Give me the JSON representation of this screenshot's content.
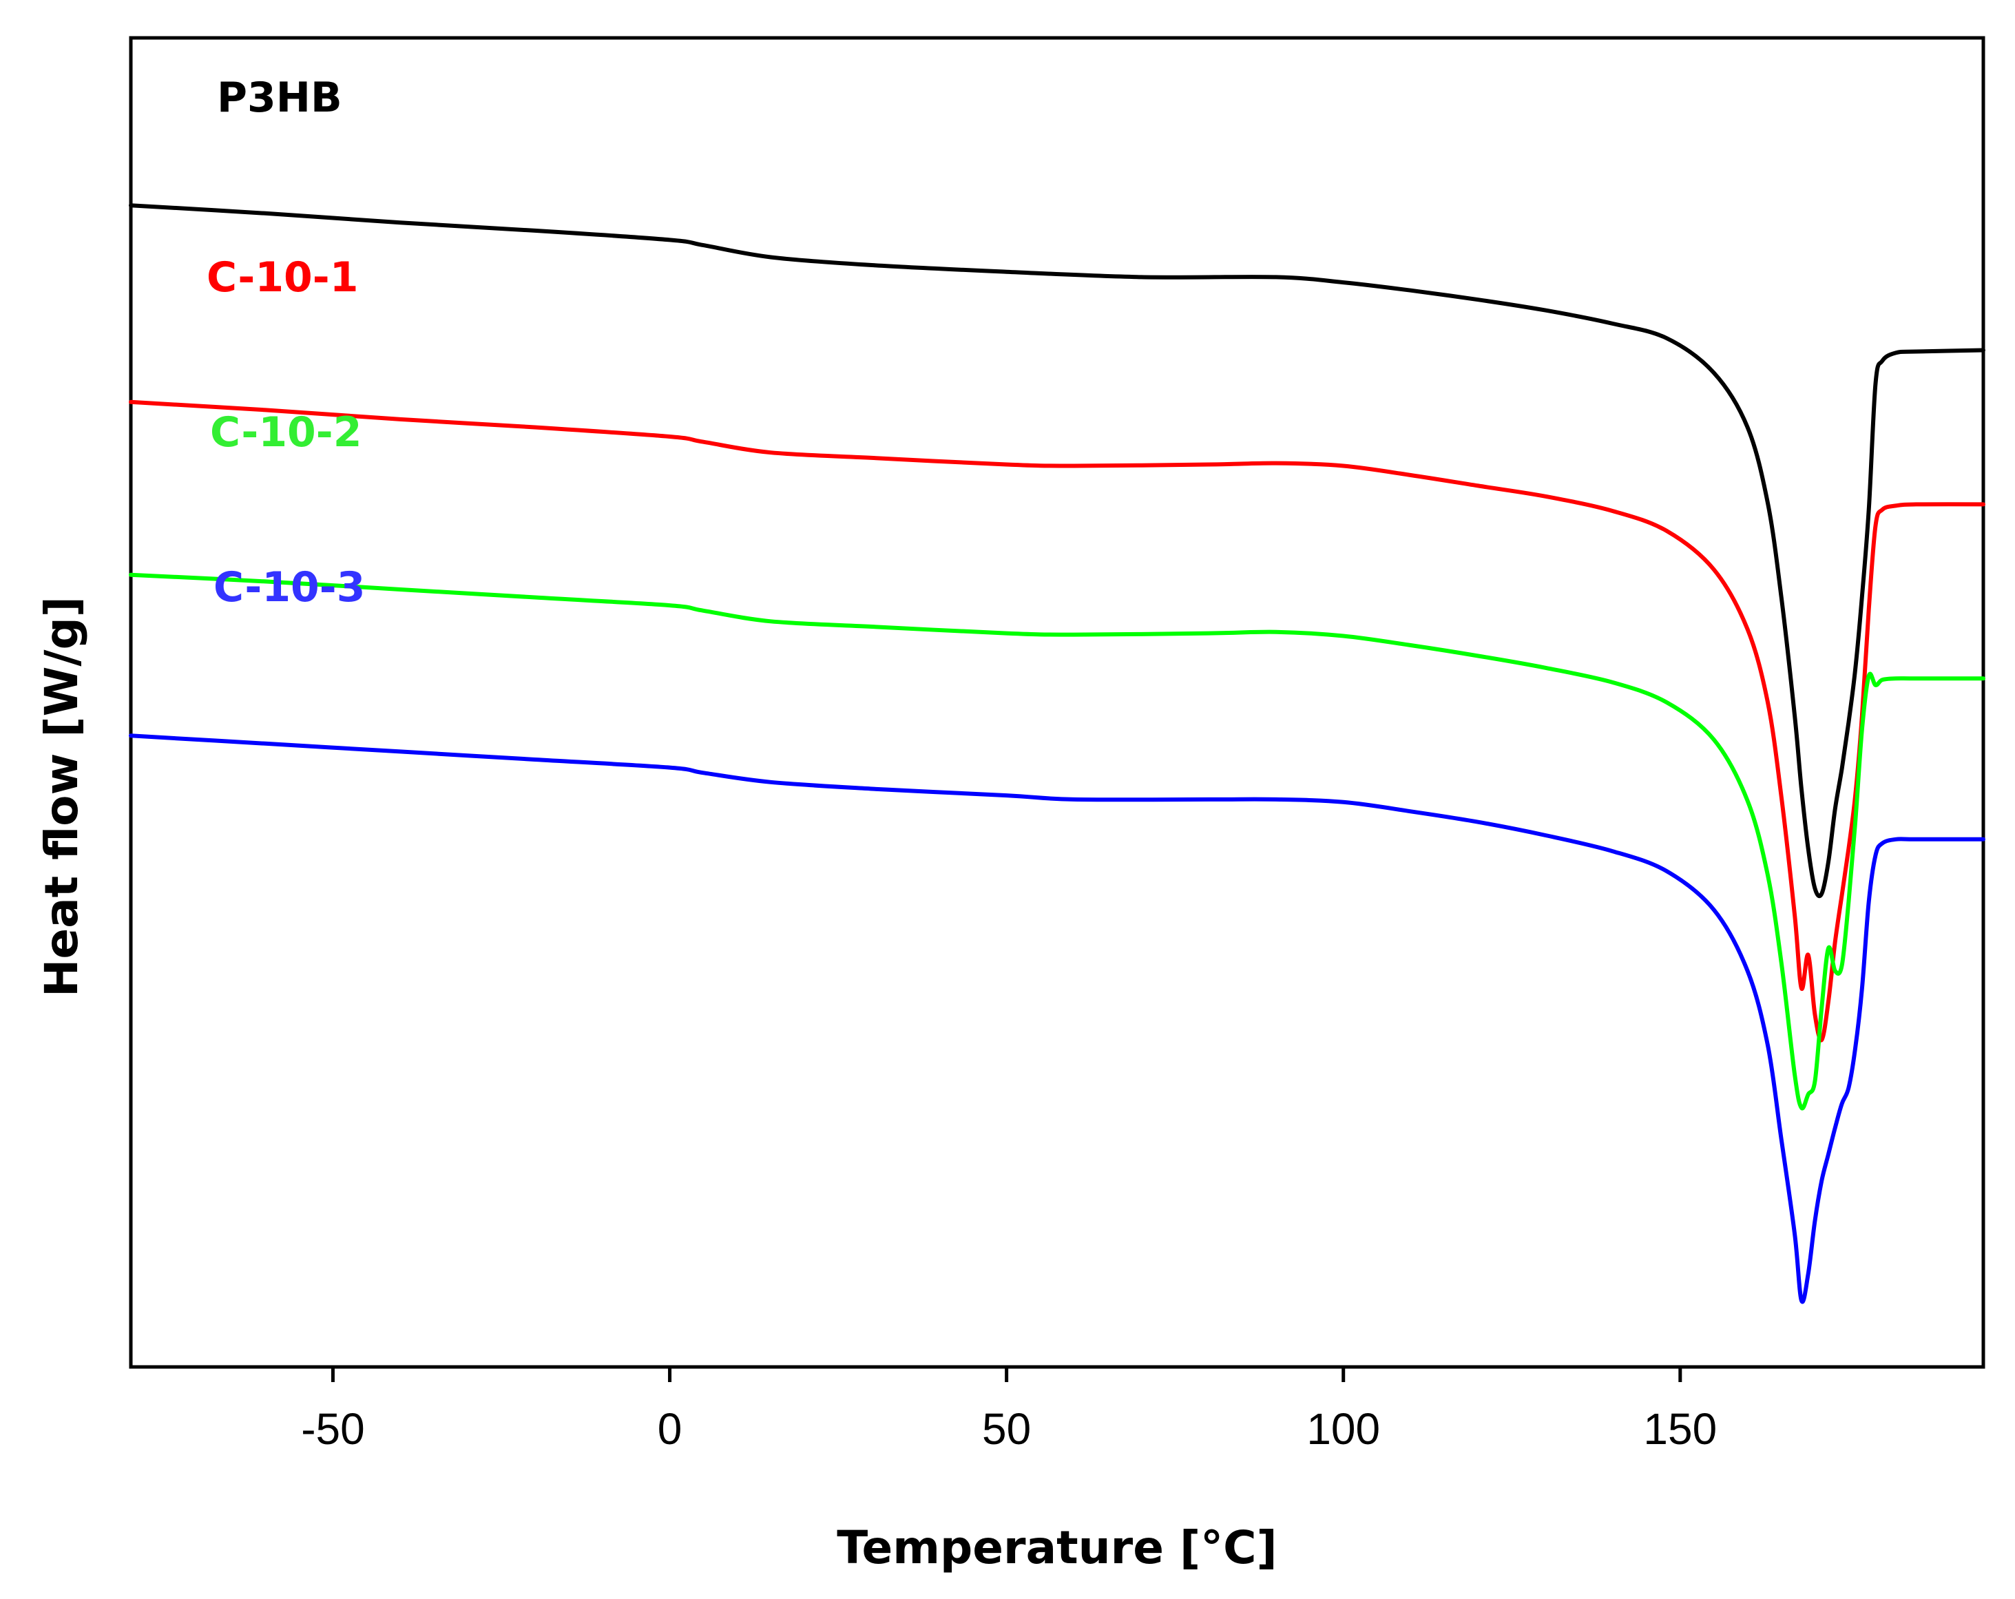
{
  "chart_data": {
    "type": "line",
    "title": "",
    "xlabel": "Temperature [°C]",
    "ylabel": "Heat flow [W/g]",
    "xlim": [
      -80,
      195
    ],
    "ylim": [
      0,
      100
    ],
    "xticks": [
      -50,
      0,
      50,
      100,
      150
    ],
    "xtick_labels": [
      "-50",
      "0",
      "50",
      "100",
      "150"
    ],
    "y_tick_labels_shown": false,
    "series": [
      {
        "name": "P3HB",
        "color": "#000000",
        "x": [
          -80,
          -60,
          -40,
          -20,
          0,
          5,
          15,
          30,
          50,
          70,
          90,
          100,
          110,
          120,
          130,
          140,
          148,
          155,
          160,
          163,
          165,
          167,
          168,
          169,
          170,
          171,
          172,
          173,
          174,
          175,
          176,
          177,
          178,
          179,
          180,
          182,
          185,
          195
        ],
        "y": [
          87.4,
          86.8,
          86.1,
          85.5,
          84.8,
          84.4,
          83.5,
          82.9,
          82.4,
          82.0,
          82.0,
          81.6,
          81.0,
          80.3,
          79.5,
          78.5,
          77.4,
          74.8,
          70.7,
          65.0,
          58.0,
          49.0,
          43.5,
          39.0,
          36.0,
          35.6,
          38.0,
          42.0,
          45.0,
          48.5,
          52.5,
          58.0,
          64.5,
          74.0,
          75.7,
          76.3,
          76.4,
          76.5
        ]
      },
      {
        "name": "C-10-1",
        "color": "#ff0000",
        "x": [
          -80,
          -60,
          -40,
          -20,
          0,
          5,
          15,
          30,
          50,
          60,
          80,
          90,
          100,
          110,
          120,
          130,
          140,
          148,
          155,
          160,
          163,
          165,
          167,
          168,
          169,
          170,
          171,
          172,
          173,
          174,
          175,
          176,
          177,
          178,
          179,
          180,
          182,
          185,
          195
        ],
        "y": [
          72.6,
          72.0,
          71.3,
          70.7,
          70.0,
          69.6,
          68.8,
          68.4,
          67.9,
          67.8,
          67.9,
          68.0,
          67.8,
          67.1,
          66.3,
          65.5,
          64.4,
          62.9,
          60.0,
          55.5,
          50.0,
          43.0,
          34.0,
          28.5,
          31.0,
          26.5,
          24.6,
          27.5,
          32.0,
          35.5,
          39.0,
          43.0,
          49.0,
          57.0,
          63.3,
          64.5,
          64.8,
          64.9,
          64.9
        ]
      },
      {
        "name": "C-10-2",
        "color": "#00ff00",
        "x": [
          -80,
          -60,
          -40,
          -20,
          0,
          5,
          15,
          30,
          50,
          60,
          80,
          90,
          100,
          110,
          120,
          130,
          140,
          148,
          155,
          160,
          163,
          165,
          167,
          168,
          169,
          170,
          171,
          172,
          173,
          174,
          175,
          176,
          177,
          178,
          179,
          180,
          182,
          185,
          195
        ],
        "y": [
          59.6,
          59.1,
          58.5,
          57.9,
          57.3,
          56.9,
          56.1,
          55.7,
          55.2,
          55.1,
          55.2,
          55.3,
          55.0,
          54.3,
          53.5,
          52.6,
          51.5,
          50.0,
          47.2,
          42.6,
          37.0,
          30.5,
          22.0,
          19.5,
          20.5,
          21.5,
          27.0,
          31.5,
          29.8,
          30.2,
          35.0,
          41.0,
          48.0,
          52.0,
          51.3,
          51.7,
          51.8,
          51.8,
          51.8
        ]
      },
      {
        "name": "C-10-3",
        "color": "#0000ff",
        "x": [
          -80,
          -60,
          -40,
          -20,
          0,
          5,
          15,
          30,
          50,
          60,
          80,
          90,
          100,
          110,
          120,
          130,
          140,
          148,
          155,
          160,
          163,
          165,
          167,
          168,
          169,
          170,
          171,
          172,
          173,
          174,
          175,
          176,
          177,
          178,
          179,
          180,
          182,
          185,
          195
        ],
        "y": [
          47.5,
          46.9,
          46.3,
          45.7,
          45.1,
          44.7,
          44.0,
          43.5,
          43.0,
          42.7,
          42.7,
          42.7,
          42.5,
          41.8,
          41.0,
          40.0,
          38.8,
          37.3,
          34.4,
          29.8,
          24.2,
          17.2,
          10.0,
          5.0,
          7.0,
          11.0,
          14.0,
          16.0,
          18.0,
          19.8,
          21.0,
          24.0,
          28.5,
          35.0,
          38.5,
          39.4,
          39.7,
          39.7,
          39.7
        ]
      }
    ],
    "annotations": [
      {
        "text": "P3HB",
        "color": "#000000",
        "series": "P3HB"
      },
      {
        "text": "C-10-1",
        "color": "#ff0000",
        "series": "C-10-1"
      },
      {
        "text": "C-10-2",
        "color": "#33ee33",
        "series": "C-10-2"
      },
      {
        "text": "C-10-3",
        "color": "#3333ff",
        "series": "C-10-3"
      }
    ],
    "grid": false,
    "legend": "none"
  }
}
